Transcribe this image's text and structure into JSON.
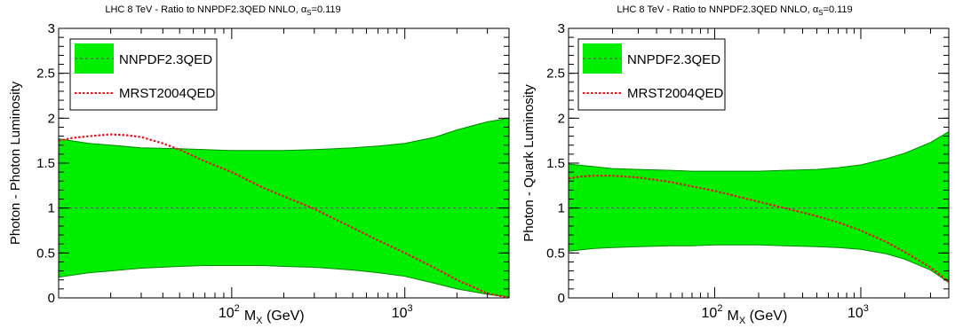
{
  "chart_data": [
    {
      "type": "area",
      "title": "LHC 8 TeV - Ratio to NNPDF2.3QED NNLO, ",
      "title_alpha": "α",
      "title_sub": "S",
      "title_suffix": "=0.119",
      "ylabel": "Photon - Photon Luminosity",
      "xlabel_main": "M",
      "xlabel_sub": "X",
      "xlabel_suffix": " (GeV)",
      "x_scale": "log",
      "xlim": [
        10,
        4000
      ],
      "ylim": [
        0,
        3
      ],
      "yticks": [
        "0",
        "0.5",
        "1",
        "1.5",
        "2",
        "2.5",
        "3"
      ],
      "xtick_labels": [
        {
          "base": "10",
          "exp": "2",
          "value": 100
        },
        {
          "base": "10",
          "exp": "3",
          "value": 1000
        }
      ],
      "legend_position": "top-left",
      "grid": false,
      "reference_line": 1,
      "colors": {
        "band": "#00ee00",
        "band_edge": "#008800",
        "mrst": "#e8141e",
        "ref": "#555555"
      },
      "series": [
        {
          "name": "NNPDF2.3QED",
          "kind": "band",
          "x": [
            10,
            15,
            20,
            30,
            50,
            70,
            100,
            150,
            200,
            300,
            500,
            700,
            1000,
            1500,
            2000,
            3000,
            4000
          ],
          "upper": [
            1.77,
            1.72,
            1.7,
            1.67,
            1.66,
            1.65,
            1.64,
            1.64,
            1.64,
            1.65,
            1.67,
            1.69,
            1.72,
            1.79,
            1.87,
            1.96,
            2.0
          ],
          "lower": [
            0.23,
            0.28,
            0.3,
            0.33,
            0.35,
            0.36,
            0.36,
            0.36,
            0.35,
            0.34,
            0.31,
            0.28,
            0.24,
            0.16,
            0.1,
            0.04,
            0.01
          ]
        },
        {
          "name": "MRST2004QED",
          "kind": "line",
          "x": [
            10,
            12,
            15,
            20,
            25,
            30,
            40,
            50,
            70,
            100,
            150,
            200,
            300,
            500,
            700,
            1000,
            1500,
            2000,
            3000,
            4000
          ],
          "values": [
            1.75,
            1.78,
            1.8,
            1.82,
            1.81,
            1.79,
            1.72,
            1.65,
            1.52,
            1.4,
            1.23,
            1.13,
            0.99,
            0.78,
            0.64,
            0.5,
            0.33,
            0.2,
            0.05,
            0.0
          ]
        }
      ]
    },
    {
      "type": "area",
      "title": "LHC 8 TeV - Ratio to NNPDF2.3QED NNLO, ",
      "title_alpha": "α",
      "title_sub": "S",
      "title_suffix": "=0.119",
      "ylabel": "Photon - Quark Luminosity",
      "xlabel_main": "M",
      "xlabel_sub": "X",
      "xlabel_suffix": " (GeV)",
      "x_scale": "log",
      "xlim": [
        10,
        4000
      ],
      "ylim": [
        0,
        3
      ],
      "yticks": [
        "0",
        "0.5",
        "1",
        "1.5",
        "2",
        "2.5",
        "3"
      ],
      "xtick_labels": [
        {
          "base": "10",
          "exp": "2",
          "value": 100
        },
        {
          "base": "10",
          "exp": "3",
          "value": 1000
        }
      ],
      "legend_position": "top-left",
      "grid": false,
      "reference_line": 1,
      "colors": {
        "band": "#00ee00",
        "band_edge": "#008800",
        "mrst": "#e8141e",
        "ref": "#555555"
      },
      "series": [
        {
          "name": "NNPDF2.3QED",
          "kind": "band",
          "x": [
            10,
            15,
            20,
            30,
            50,
            70,
            100,
            150,
            200,
            300,
            500,
            700,
            1000,
            1500,
            2000,
            3000,
            4000
          ],
          "upper": [
            1.49,
            1.46,
            1.44,
            1.43,
            1.42,
            1.41,
            1.41,
            1.41,
            1.41,
            1.42,
            1.43,
            1.45,
            1.48,
            1.55,
            1.61,
            1.73,
            1.85
          ],
          "lower": [
            0.52,
            0.55,
            0.56,
            0.57,
            0.58,
            0.58,
            0.59,
            0.59,
            0.59,
            0.58,
            0.57,
            0.56,
            0.54,
            0.49,
            0.43,
            0.31,
            0.17
          ]
        },
        {
          "name": "MRST2004QED",
          "kind": "line",
          "x": [
            10,
            12,
            15,
            20,
            30,
            50,
            70,
            100,
            150,
            200,
            300,
            500,
            700,
            1000,
            1500,
            2000,
            3000,
            4000
          ],
          "values": [
            1.33,
            1.35,
            1.36,
            1.36,
            1.34,
            1.29,
            1.24,
            1.19,
            1.12,
            1.07,
            1.0,
            0.91,
            0.84,
            0.75,
            0.62,
            0.51,
            0.34,
            0.18
          ]
        }
      ]
    }
  ]
}
